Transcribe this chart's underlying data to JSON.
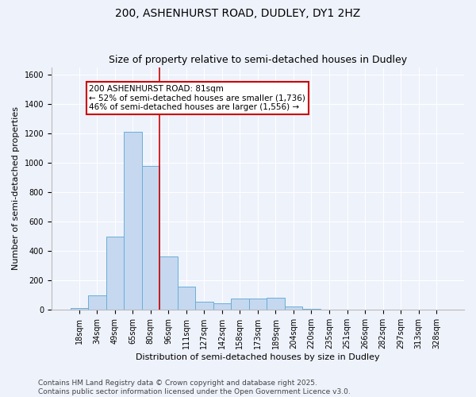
{
  "title1": "200, ASHENHURST ROAD, DUDLEY, DY1 2HZ",
  "title2": "Size of property relative to semi-detached houses in Dudley",
  "xlabel": "Distribution of semi-detached houses by size in Dudley",
  "ylabel": "Number of semi-detached properties",
  "categories": [
    "18sqm",
    "34sqm",
    "49sqm",
    "65sqm",
    "80sqm",
    "96sqm",
    "111sqm",
    "127sqm",
    "142sqm",
    "158sqm",
    "173sqm",
    "189sqm",
    "204sqm",
    "220sqm",
    "235sqm",
    "251sqm",
    "266sqm",
    "282sqm",
    "297sqm",
    "313sqm",
    "328sqm"
  ],
  "values": [
    10,
    100,
    500,
    1210,
    980,
    365,
    160,
    55,
    45,
    75,
    75,
    85,
    25,
    8,
    4,
    3,
    3,
    1,
    1,
    1,
    3
  ],
  "bar_color": "#c5d8f0",
  "bar_edge_color": "#6aaed6",
  "red_line_index": 4,
  "red_line_color": "#cc0000",
  "ylim": [
    0,
    1650
  ],
  "yticks": [
    0,
    200,
    400,
    600,
    800,
    1000,
    1200,
    1400,
    1600
  ],
  "annotation_text": "200 ASHENHURST ROAD: 81sqm\n← 52% of semi-detached houses are smaller (1,736)\n46% of semi-detached houses are larger (1,556) →",
  "annotation_box_color": "#ffffff",
  "annotation_box_edge_color": "#cc0000",
  "footer1": "Contains HM Land Registry data © Crown copyright and database right 2025.",
  "footer2": "Contains public sector information licensed under the Open Government Licence v3.0.",
  "bg_color": "#eef2fb",
  "plot_bg_color": "#eef2fb",
  "grid_color": "#ffffff",
  "title_fontsize": 10,
  "subtitle_fontsize": 9,
  "axis_label_fontsize": 8,
  "tick_fontsize": 7,
  "footer_fontsize": 6.5,
  "annotation_fontsize": 7.5
}
